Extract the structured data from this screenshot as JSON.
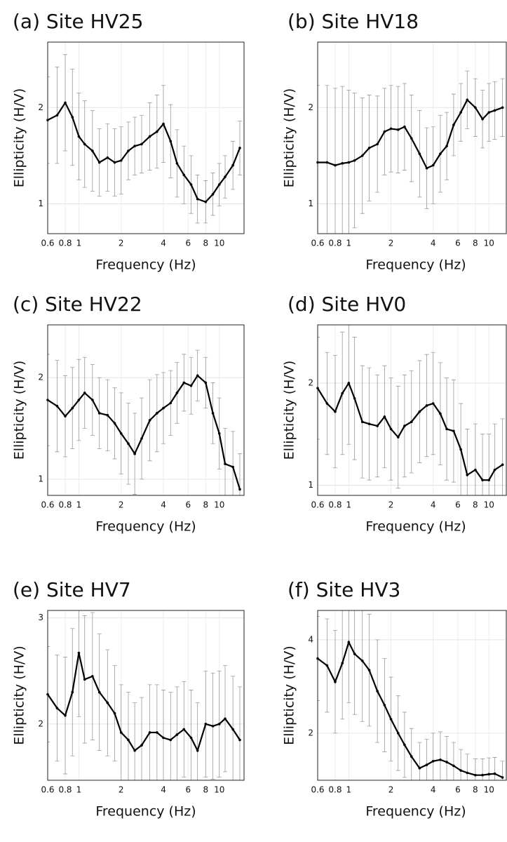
{
  "chart_data": [
    {
      "type": "line",
      "title": "(a) Site HV25",
      "x_label": "Frequency (Hz)",
      "y_label": "Ellipticity (H/V)",
      "x_scale": "log",
      "grid": true,
      "x": [
        0.6,
        0.7,
        0.8,
        0.9,
        1,
        1.1,
        1.25,
        1.4,
        1.6,
        1.8,
        2,
        2.25,
        2.5,
        2.8,
        3.2,
        3.6,
        4,
        4.5,
        5,
        5.6,
        6.3,
        7,
        8,
        9,
        10,
        11,
        12.5,
        14
      ],
      "series": [
        {
          "color": "#000000",
          "values": [
            1.87,
            1.92,
            2.05,
            1.9,
            1.7,
            1.62,
            1.55,
            1.43,
            1.48,
            1.43,
            1.45,
            1.55,
            1.6,
            1.62,
            1.7,
            1.75,
            1.83,
            1.65,
            1.42,
            1.3,
            1.2,
            1.05,
            1.02,
            1.1,
            1.2,
            1.28,
            1.4,
            1.58
          ],
          "errors": [
            0.45,
            0.5,
            0.5,
            0.5,
            0.45,
            0.45,
            0.42,
            0.35,
            0.35,
            0.35,
            0.35,
            0.3,
            0.3,
            0.3,
            0.35,
            0.38,
            0.4,
            0.38,
            0.35,
            0.3,
            0.3,
            0.25,
            0.22,
            0.22,
            0.22,
            0.22,
            0.25,
            0.28
          ]
        }
      ],
      "xlim": [
        0.6,
        15
      ],
      "ylim": [
        0.69,
        2.68
      ],
      "xticks": [
        0.6,
        0.8,
        1,
        2,
        4,
        6,
        8,
        10
      ],
      "yticks": [
        1,
        2
      ]
    },
    {
      "type": "line",
      "title": "(b) Site HV18",
      "x_label": "Frequency (Hz)",
      "y_label": "Ellipticity (H/V)",
      "x_scale": "log",
      "grid": true,
      "x": [
        0.6,
        0.7,
        0.8,
        0.9,
        1,
        1.1,
        1.25,
        1.4,
        1.6,
        1.8,
        2,
        2.25,
        2.5,
        2.8,
        3.2,
        3.6,
        4,
        4.5,
        5,
        5.6,
        6.3,
        7,
        8,
        9,
        10,
        11,
        12.5
      ],
      "series": [
        {
          "color": "#000000",
          "values": [
            1.43,
            1.43,
            1.4,
            1.42,
            1.43,
            1.45,
            1.5,
            1.58,
            1.62,
            1.75,
            1.78,
            1.77,
            1.8,
            1.68,
            1.52,
            1.37,
            1.4,
            1.52,
            1.6,
            1.82,
            1.95,
            2.08,
            2.0,
            1.88,
            1.95,
            1.97,
            2.0
          ],
          "errors": [
            0.8,
            0.8,
            0.8,
            0.8,
            0.75,
            0.7,
            0.6,
            0.55,
            0.5,
            0.45,
            0.45,
            0.45,
            0.45,
            0.45,
            0.45,
            0.42,
            0.4,
            0.4,
            0.35,
            0.32,
            0.3,
            0.3,
            0.3,
            0.3,
            0.3,
            0.3,
            0.3
          ]
        }
      ],
      "xlim": [
        0.6,
        13.3
      ],
      "ylim": [
        0.69,
        2.68
      ],
      "xticks": [
        0.6,
        0.8,
        1,
        2,
        4,
        6,
        8,
        10
      ],
      "yticks": [
        1,
        2
      ]
    },
    {
      "type": "line",
      "title": "(c) Site HV22",
      "x_label": "Frequency (Hz)",
      "y_label": "Ellipticity (H/V)",
      "x_scale": "log",
      "grid": true,
      "x": [
        0.6,
        0.7,
        0.8,
        0.9,
        1,
        1.1,
        1.25,
        1.4,
        1.6,
        1.8,
        2,
        2.25,
        2.5,
        2.8,
        3.2,
        3.6,
        4,
        4.5,
        5,
        5.6,
        6.3,
        7,
        8,
        9,
        10,
        11,
        12.5,
        14
      ],
      "series": [
        {
          "color": "#000000",
          "values": [
            1.78,
            1.72,
            1.62,
            1.7,
            1.78,
            1.85,
            1.78,
            1.65,
            1.63,
            1.55,
            1.45,
            1.35,
            1.25,
            1.4,
            1.58,
            1.65,
            1.7,
            1.75,
            1.85,
            1.95,
            1.92,
            2.02,
            1.95,
            1.65,
            1.45,
            1.15,
            1.12,
            0.9
          ],
          "errors": [
            0.45,
            0.45,
            0.4,
            0.4,
            0.4,
            0.35,
            0.35,
            0.35,
            0.35,
            0.35,
            0.4,
            0.4,
            0.4,
            0.4,
            0.4,
            0.38,
            0.35,
            0.32,
            0.3,
            0.28,
            0.28,
            0.25,
            0.25,
            0.3,
            0.35,
            0.35,
            0.35,
            0.35
          ]
        }
      ],
      "xlim": [
        0.6,
        15
      ],
      "ylim": [
        0.84,
        2.52
      ],
      "xticks": [
        0.6,
        0.8,
        1,
        2,
        4,
        6,
        8,
        10
      ],
      "yticks": [
        1,
        2
      ]
    },
    {
      "type": "line",
      "title": "(d) Site HV0",
      "x_label": "Frequency (Hz)",
      "y_label": "Ellipticity (H/V)",
      "x_scale": "log",
      "grid": true,
      "x": [
        0.6,
        0.7,
        0.8,
        0.9,
        1,
        1.1,
        1.25,
        1.4,
        1.6,
        1.8,
        2,
        2.25,
        2.5,
        2.8,
        3.2,
        3.6,
        4,
        4.5,
        5,
        5.6,
        6.3,
        7,
        8,
        9,
        10,
        11,
        12.5
      ],
      "series": [
        {
          "color": "#000000",
          "values": [
            1.95,
            1.8,
            1.72,
            1.9,
            2.0,
            1.85,
            1.62,
            1.6,
            1.58,
            1.67,
            1.55,
            1.47,
            1.58,
            1.62,
            1.72,
            1.78,
            1.8,
            1.7,
            1.55,
            1.53,
            1.35,
            1.1,
            1.15,
            1.05,
            1.05,
            1.15,
            1.2
          ],
          "errors": [
            0.5,
            0.5,
            0.55,
            0.6,
            0.6,
            0.6,
            0.55,
            0.55,
            0.5,
            0.5,
            0.5,
            0.5,
            0.5,
            0.5,
            0.5,
            0.5,
            0.5,
            0.5,
            0.5,
            0.5,
            0.45,
            0.45,
            0.45,
            0.45,
            0.45,
            0.45,
            0.45
          ]
        }
      ],
      "xlim": [
        0.6,
        13.3
      ],
      "ylim": [
        0.9,
        2.57
      ],
      "xticks": [
        0.6,
        0.8,
        1,
        2,
        4,
        6,
        8,
        10
      ],
      "yticks": [
        1,
        2
      ]
    },
    {
      "type": "line",
      "title": "(e) Site HV7",
      "x_label": "Frequency (Hz)",
      "y_label": "Ellipticity (H/V)",
      "x_scale": "log",
      "grid": true,
      "x": [
        0.6,
        0.7,
        0.8,
        0.9,
        1,
        1.1,
        1.25,
        1.4,
        1.6,
        1.8,
        2,
        2.25,
        2.5,
        2.8,
        3.2,
        3.6,
        4,
        4.5,
        5,
        5.6,
        6.3,
        7,
        8,
        9,
        10,
        11,
        12.5,
        14
      ],
      "series": [
        {
          "color": "#000000",
          "values": [
            2.28,
            2.15,
            2.08,
            2.3,
            2.67,
            2.42,
            2.45,
            2.3,
            2.2,
            2.1,
            1.92,
            1.85,
            1.75,
            1.8,
            1.92,
            1.92,
            1.87,
            1.85,
            1.9,
            1.95,
            1.87,
            1.75,
            2.0,
            1.98,
            2.0,
            2.05,
            1.95,
            1.85
          ],
          "errors": [
            0.45,
            0.5,
            0.55,
            0.6,
            0.6,
            0.6,
            0.6,
            0.55,
            0.5,
            0.45,
            0.45,
            0.45,
            0.45,
            0.45,
            0.45,
            0.45,
            0.45,
            0.45,
            0.45,
            0.45,
            0.45,
            0.45,
            0.5,
            0.5,
            0.5,
            0.5,
            0.5,
            0.5
          ]
        }
      ],
      "xlim": [
        0.6,
        15
      ],
      "ylim": [
        1.47,
        3.07
      ],
      "xticks": [
        0.6,
        0.8,
        1,
        2,
        4,
        6,
        8,
        10
      ],
      "yticks": [
        2,
        3
      ]
    },
    {
      "type": "line",
      "title": "(f) Site HV3",
      "x_label": "Frequency (Hz)",
      "y_label": "Ellipticity (H/V)",
      "x_scale": "log",
      "grid": true,
      "x": [
        0.6,
        0.7,
        0.8,
        0.9,
        1,
        1.1,
        1.25,
        1.4,
        1.6,
        1.8,
        2,
        2.25,
        2.5,
        2.8,
        3.2,
        3.6,
        4,
        4.5,
        5,
        5.6,
        6.3,
        7,
        8,
        9,
        10,
        11,
        12.5
      ],
      "series": [
        {
          "color": "#000000",
          "values": [
            3.6,
            3.45,
            3.1,
            3.5,
            3.95,
            3.7,
            3.55,
            3.35,
            2.9,
            2.6,
            2.3,
            2.0,
            1.75,
            1.5,
            1.25,
            1.32,
            1.4,
            1.43,
            1.38,
            1.3,
            1.2,
            1.15,
            1.1,
            1.1,
            1.12,
            1.13,
            1.05
          ],
          "errors": [
            0.9,
            1.0,
            1.1,
            1.2,
            1.3,
            1.3,
            1.3,
            1.2,
            1.1,
            1.0,
            0.9,
            0.8,
            0.7,
            0.6,
            0.55,
            0.55,
            0.6,
            0.6,
            0.55,
            0.5,
            0.45,
            0.4,
            0.35,
            0.35,
            0.35,
            0.35,
            0.35
          ]
        }
      ],
      "xlim": [
        0.6,
        13.3
      ],
      "ylim": [
        0.99,
        4.63
      ],
      "xticks": [
        0.6,
        0.8,
        1,
        2,
        4,
        6,
        8,
        10
      ],
      "yticks": [
        2,
        4
      ]
    }
  ]
}
